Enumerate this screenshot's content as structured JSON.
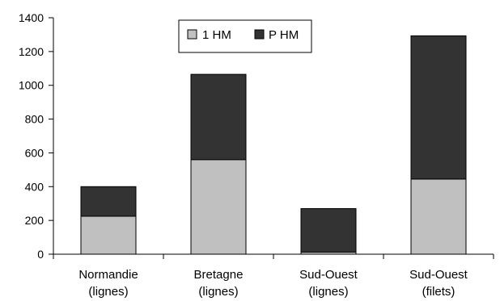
{
  "chart_data": {
    "type": "bar",
    "stacked": true,
    "categories": [
      [
        "Normandie",
        "(lignes)"
      ],
      [
        "Bretagne",
        "(lignes)"
      ],
      [
        "Sud-Ouest",
        "(lignes)"
      ],
      [
        "Sud-Ouest",
        "(filets)"
      ]
    ],
    "series": [
      {
        "name": "1 HM",
        "color": "#c0c0c0",
        "values": [
          225,
          560,
          12,
          445
        ]
      },
      {
        "name": "P HM",
        "color": "#333333",
        "values": [
          175,
          505,
          258,
          848
        ]
      }
    ],
    "ylim": [
      0,
      1400
    ],
    "yticks": [
      0,
      200,
      400,
      600,
      800,
      1000,
      1200,
      1400
    ],
    "grid": false,
    "legend_position": "top-center",
    "title": "",
    "xlabel": "",
    "ylabel": ""
  }
}
